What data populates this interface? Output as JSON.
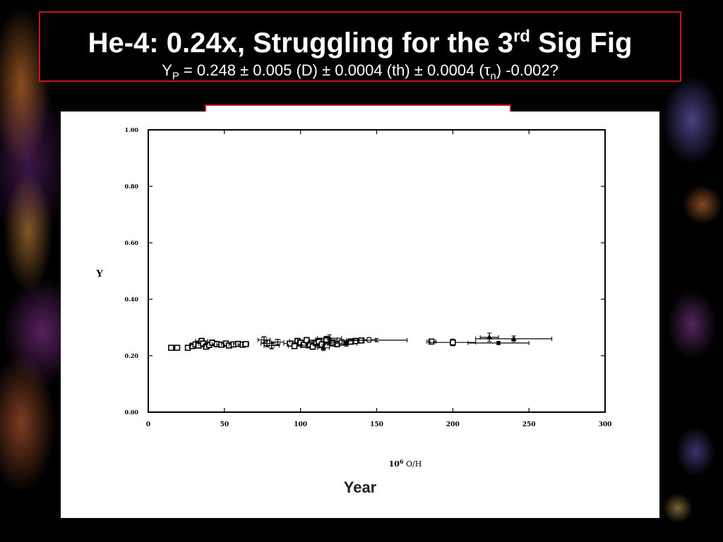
{
  "slide": {
    "title_pre": "He-4:  0.24x, Struggling for the 3",
    "title_sup": "rd",
    "title_post": " Sig Fig",
    "subtitle_y": "Y",
    "subtitle_p": "P",
    "subtitle_mid": " = 0.248 ± 0.005 (D) ± 0.0004 (th) ± 0.0004 (τ",
    "subtitle_n": "n",
    "subtitle_end": ") -0.002?",
    "bottom_label": "Year"
  },
  "chart_data": {
    "type": "scatter",
    "xlabel_pre": "10",
    "xlabel_exp": "6",
    "xlabel_post": " O/H",
    "ylabel": "Y",
    "xlim": [
      0,
      300
    ],
    "ylim": [
      0,
      1
    ],
    "xticks": [
      "0",
      "50",
      "100",
      "150",
      "200",
      "250",
      "300"
    ],
    "yticks": [
      "0.00",
      "0.20",
      "0.40",
      "0.60",
      "0.80",
      "1.00"
    ],
    "grid": false,
    "colors": {
      "marks": "#000000"
    },
    "points": [
      {
        "x": 15,
        "y": 0.228,
        "xerr": 1,
        "yerr": 0.006,
        "m": "square"
      },
      {
        "x": 19,
        "y": 0.228,
        "xerr": 1,
        "yerr": 0.006,
        "m": "square"
      },
      {
        "x": 26,
        "y": 0.228,
        "xerr": 1,
        "yerr": 0.006,
        "m": "square"
      },
      {
        "x": 29,
        "y": 0.234,
        "xerr": 2,
        "yerr": 0.008,
        "m": "square"
      },
      {
        "x": 31,
        "y": 0.24,
        "xerr": 3,
        "yerr": 0.008,
        "m": "square"
      },
      {
        "x": 33,
        "y": 0.236,
        "xerr": 2,
        "yerr": 0.008,
        "m": "square"
      },
      {
        "x": 35,
        "y": 0.252,
        "xerr": 4,
        "yerr": 0.01,
        "m": "square"
      },
      {
        "x": 36,
        "y": 0.243,
        "xerr": 3,
        "yerr": 0.01,
        "m": "square"
      },
      {
        "x": 38,
        "y": 0.232,
        "xerr": 2,
        "yerr": 0.008,
        "m": "square"
      },
      {
        "x": 40,
        "y": 0.238,
        "xerr": 3,
        "yerr": 0.01,
        "m": "square"
      },
      {
        "x": 42,
        "y": 0.246,
        "xerr": 3,
        "yerr": 0.01,
        "m": "square"
      },
      {
        "x": 45,
        "y": 0.241,
        "xerr": 3,
        "yerr": 0.01,
        "m": "square"
      },
      {
        "x": 48,
        "y": 0.239,
        "xerr": 3,
        "yerr": 0.008,
        "m": "square"
      },
      {
        "x": 51,
        "y": 0.243,
        "xerr": 3,
        "yerr": 0.008,
        "m": "square"
      },
      {
        "x": 53,
        "y": 0.236,
        "xerr": 3,
        "yerr": 0.008,
        "m": "square"
      },
      {
        "x": 56,
        "y": 0.24,
        "xerr": 3,
        "yerr": 0.008,
        "m": "square"
      },
      {
        "x": 59,
        "y": 0.242,
        "xerr": 3,
        "yerr": 0.008,
        "m": "square"
      },
      {
        "x": 62,
        "y": 0.239,
        "xerr": 3,
        "yerr": 0.008,
        "m": "square"
      },
      {
        "x": 64,
        "y": 0.241,
        "xerr": 2,
        "yerr": 0.008,
        "m": "square"
      },
      {
        "x": 76,
        "y": 0.256,
        "xerr": 4,
        "yerr": 0.012,
        "m": "square-open"
      },
      {
        "x": 78,
        "y": 0.243,
        "xerr": 4,
        "yerr": 0.012,
        "m": "square-open"
      },
      {
        "x": 81,
        "y": 0.236,
        "xerr": 5,
        "yerr": 0.012,
        "m": "square-open"
      },
      {
        "x": 85,
        "y": 0.248,
        "xerr": 4,
        "yerr": 0.01,
        "m": "square-open"
      },
      {
        "x": 93,
        "y": 0.243,
        "xerr": 4,
        "yerr": 0.008,
        "m": "square"
      },
      {
        "x": 96,
        "y": 0.234,
        "xerr": 4,
        "yerr": 0.008,
        "m": "square"
      },
      {
        "x": 98,
        "y": 0.252,
        "xerr": 5,
        "yerr": 0.01,
        "m": "square"
      },
      {
        "x": 100,
        "y": 0.246,
        "xerr": 5,
        "yerr": 0.01,
        "m": "square"
      },
      {
        "x": 102,
        "y": 0.239,
        "xerr": 4,
        "yerr": 0.008,
        "m": "square"
      },
      {
        "x": 104,
        "y": 0.255,
        "xerr": 6,
        "yerr": 0.01,
        "m": "square"
      },
      {
        "x": 106,
        "y": 0.237,
        "xerr": 5,
        "yerr": 0.008,
        "m": "square"
      },
      {
        "x": 108,
        "y": 0.232,
        "xerr": 4,
        "yerr": 0.01,
        "m": "square"
      },
      {
        "x": 110,
        "y": 0.246,
        "xerr": 5,
        "yerr": 0.01,
        "m": "square"
      },
      {
        "x": 112,
        "y": 0.251,
        "xerr": 6,
        "yerr": 0.01,
        "m": "square"
      },
      {
        "x": 114,
        "y": 0.24,
        "xerr": 5,
        "yerr": 0.01,
        "m": "square"
      },
      {
        "x": 115,
        "y": 0.228,
        "xerr": 4,
        "yerr": 0.01,
        "m": "triangle"
      },
      {
        "x": 117,
        "y": 0.257,
        "xerr": 7,
        "yerr": 0.012,
        "m": "square"
      },
      {
        "x": 119,
        "y": 0.262,
        "xerr": 8,
        "yerr": 0.012,
        "m": "triangle"
      },
      {
        "x": 121,
        "y": 0.244,
        "xerr": 6,
        "yerr": 0.01,
        "m": "square"
      },
      {
        "x": 124,
        "y": 0.241,
        "xerr": 6,
        "yerr": 0.01,
        "m": "square"
      },
      {
        "x": 127,
        "y": 0.247,
        "xerr": 7,
        "yerr": 0.01,
        "m": "square"
      },
      {
        "x": 130,
        "y": 0.243,
        "xerr": 7,
        "yerr": 0.01,
        "m": "triangle"
      },
      {
        "x": 133,
        "y": 0.25,
        "xerr": 6,
        "yerr": 0.01,
        "m": "square"
      },
      {
        "x": 136,
        "y": 0.252,
        "xerr": 5,
        "yerr": 0.01,
        "m": "square"
      },
      {
        "x": 140,
        "y": 0.254,
        "xerr": 5,
        "yerr": 0.008,
        "m": "square"
      },
      {
        "x": 145,
        "y": 0.256,
        "xerr": 4,
        "yerr": 0.008,
        "m": "circle-open"
      },
      {
        "x": 150,
        "y": 0.255,
        "xerr": 20,
        "yerr": 0.006,
        "m": "none"
      },
      {
        "x": 186,
        "y": 0.25,
        "xerr": 3,
        "yerr": 0.006,
        "m": "square"
      },
      {
        "x": 200,
        "y": 0.247,
        "xerr": 15,
        "yerr": 0.012,
        "m": "square"
      },
      {
        "x": 224,
        "y": 0.265,
        "xerr": 6,
        "yerr": 0.015,
        "m": "triangle"
      },
      {
        "x": 230,
        "y": 0.245,
        "xerr": 20,
        "yerr": 0.006,
        "m": "circle"
      },
      {
        "x": 240,
        "y": 0.26,
        "xerr": 25,
        "yerr": 0.01,
        "m": "triangle"
      }
    ]
  }
}
